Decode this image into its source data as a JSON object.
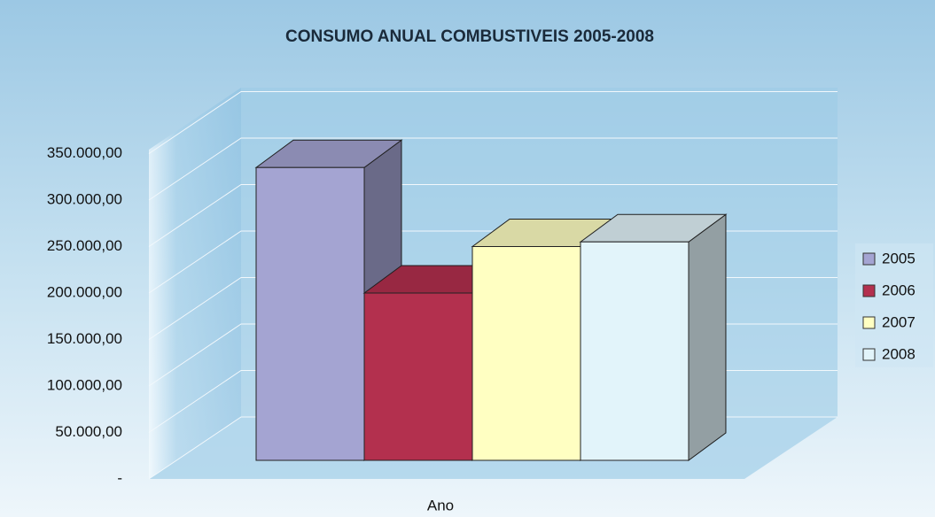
{
  "chart_data": {
    "type": "bar3d",
    "title": "CONSUMO ANUAL COMBUSTIVEIS 2005-2008",
    "categories": [
      "Ano"
    ],
    "series": [
      {
        "name": "2005",
        "color": "#a4a4d2",
        "values": [
          315000
        ]
      },
      {
        "name": "2006",
        "color": "#b3304e",
        "values": [
          180000
        ]
      },
      {
        "name": "2007",
        "color": "#ffffc2",
        "values": [
          230000
        ]
      },
      {
        "name": "2008",
        "color": "#e2f4fa",
        "values": [
          235000
        ]
      }
    ],
    "ylim": [
      0,
      350000
    ],
    "yticks": [
      {
        "value": 0,
        "label": "-"
      },
      {
        "value": 50000,
        "label": "50.000,00"
      },
      {
        "value": 100000,
        "label": "100.000,00"
      },
      {
        "value": 150000,
        "label": "150.000,00"
      },
      {
        "value": 200000,
        "label": "200.000,00"
      },
      {
        "value": 250000,
        "label": "250.000,00"
      },
      {
        "value": 300000,
        "label": "300.000,00"
      },
      {
        "value": 350000,
        "label": "350.000,00"
      }
    ],
    "grid": true,
    "legend": "right"
  }
}
